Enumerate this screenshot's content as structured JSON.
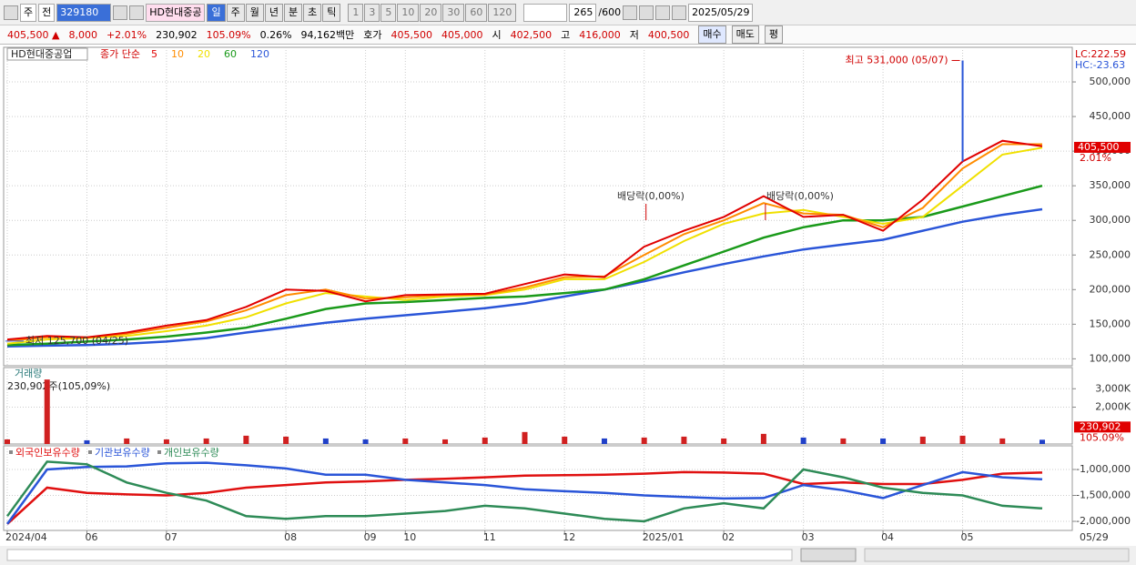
{
  "toolbar": {
    "market": "주",
    "kind": "전",
    "code": "329180",
    "name": "HD현대중공",
    "periods": [
      "일",
      "주",
      "월",
      "년",
      "분",
      "초",
      "틱"
    ],
    "intervals": [
      "1",
      "3",
      "5",
      "10",
      "20",
      "30",
      "60",
      "120"
    ],
    "count": "265",
    "max": "/600",
    "date": "2025/05/29"
  },
  "infobar": {
    "items": [
      {
        "text": "405,500 ▲",
        "color": "#d00000"
      },
      {
        "text": "8,000",
        "color": "#d00000"
      },
      {
        "text": "+2.01%",
        "color": "#d00000"
      },
      {
        "text": "230,902"
      },
      {
        "text": "105.09%",
        "color": "#d00000"
      },
      {
        "text": "0.26%"
      },
      {
        "text": "94,162백만"
      },
      {
        "text": "호가"
      },
      {
        "text": "405,500",
        "color": "#d00000"
      },
      {
        "text": "405,000",
        "color": "#d00000"
      },
      {
        "text": "시"
      },
      {
        "text": "402,500",
        "color": "#d00000"
      },
      {
        "text": "고"
      },
      {
        "text": "416,000",
        "color": "#d00000"
      },
      {
        "text": "저"
      },
      {
        "text": "400,500",
        "color": "#d00000"
      }
    ],
    "buttons": [
      "매수",
      "매도",
      "평"
    ]
  },
  "chart_data": [
    {
      "type": "line",
      "title": "HD현대중공업",
      "indicator": "종가 단순",
      "lc": "LC:222.59",
      "hc": "HC:-23.63",
      "ylim": [
        90000,
        550000
      ],
      "yticks": [
        {
          "value": 100000,
          "label": "100,000"
        },
        {
          "value": 150000,
          "label": "150,000"
        },
        {
          "value": 200000,
          "label": "200,000"
        },
        {
          "value": 250000,
          "label": "250,000"
        },
        {
          "value": 300000,
          "label": "300,000"
        },
        {
          "value": 350000,
          "label": "350,000"
        },
        {
          "value": 400000,
          "label": "400,000"
        },
        {
          "value": 450000,
          "label": "450,000"
        },
        {
          "value": 500000,
          "label": "500,000"
        }
      ],
      "series": [
        {
          "name": "5",
          "color": "#e00000",
          "values": [
            128000,
            133000,
            131000,
            138000,
            148000,
            156000,
            175000,
            200000,
            198000,
            183000,
            192000,
            193000,
            194000,
            208000,
            222000,
            218000,
            262000,
            285000,
            305000,
            335000,
            305000,
            308000,
            285000,
            330000,
            385000,
            415000,
            407000
          ]
        },
        {
          "name": "10",
          "color": "#ff8c00",
          "values": [
            126000,
            131000,
            131000,
            136000,
            145000,
            154000,
            170000,
            192000,
            200000,
            187000,
            189000,
            192000,
            193000,
            203000,
            218000,
            219000,
            250000,
            280000,
            300000,
            325000,
            310000,
            308000,
            290000,
            318000,
            375000,
            410000,
            410000
          ]
        },
        {
          "name": "20",
          "color": "#f0e000",
          "values": [
            122000,
            128000,
            130000,
            133000,
            140000,
            148000,
            160000,
            180000,
            195000,
            190000,
            185000,
            190000,
            192000,
            200000,
            215000,
            215000,
            240000,
            270000,
            295000,
            310000,
            315000,
            305000,
            295000,
            305000,
            350000,
            395000,
            405000
          ]
        },
        {
          "name": "60",
          "color": "#1a9a1a",
          "values": [
            120000,
            122000,
            125000,
            128000,
            132000,
            138000,
            145000,
            158000,
            172000,
            180000,
            182000,
            185000,
            188000,
            190000,
            195000,
            200000,
            215000,
            235000,
            255000,
            275000,
            290000,
            300000,
            300000,
            305000,
            320000,
            335000,
            350000
          ]
        },
        {
          "name": "120",
          "color": "#2a55d8",
          "values": [
            118000,
            119000,
            120000,
            122000,
            125000,
            130000,
            138000,
            145000,
            152000,
            158000,
            163000,
            168000,
            173000,
            180000,
            190000,
            200000,
            212000,
            225000,
            237000,
            248000,
            258000,
            265000,
            272000,
            285000,
            298000,
            308000,
            316000
          ]
        }
      ],
      "high": {
        "text": "최고 531,000 (05/07)",
        "value": 531000
      },
      "low": {
        "text": "최저 125,700 (04/25)",
        "value": 125700
      },
      "dividends": [
        "배당락(0,00%)",
        "배당락(0,00%)"
      ],
      "last": {
        "label": "405,500",
        "value": 405500
      },
      "change": "2.01%"
    },
    {
      "type": "bar",
      "title": "거래량",
      "annotation": "230,902주(105,09%)",
      "up_color": "#d02020",
      "down_color": "#2040c8",
      "ylim": [
        0,
        4150000
      ],
      "yticks": [
        {
          "value": 2000000,
          "label": "2,000K"
        },
        {
          "value": 3000000,
          "label": "3,000K"
        }
      ],
      "values": [
        250000,
        3500000,
        200000,
        300000,
        250000,
        300000,
        450000,
        400000,
        300000,
        250000,
        300000,
        250000,
        350000,
        650000,
        400000,
        300000,
        350000,
        400000,
        300000,
        550000,
        350000,
        300000,
        300000,
        400000,
        450000,
        300000,
        230902
      ],
      "last": {
        "label": "230,902",
        "value": 230902
      },
      "ratio": "105.09%"
    },
    {
      "type": "line",
      "ylim": [
        -2175000,
        -544000
      ],
      "yticks": [
        {
          "value": -2000000,
          "label": "-2,000,000"
        },
        {
          "value": -1500000,
          "label": "-1,500,000"
        },
        {
          "value": -1000000,
          "label": "-1,000,000"
        }
      ],
      "categories": [
        "2024/04",
        null,
        "06",
        null,
        "07",
        null,
        null,
        "08",
        null,
        "09",
        "10",
        null,
        "11",
        null,
        "12",
        null,
        "2025/01",
        null,
        "02",
        null,
        "03",
        null,
        "04",
        null,
        "05",
        null,
        null
      ],
      "end_label": "05/29",
      "series": [
        {
          "name": "외국인보유수량",
          "color": "#e01010",
          "values": [
            -2050000,
            -1350000,
            -1450000,
            -1480000,
            -1500000,
            -1450000,
            -1350000,
            -1300000,
            -1250000,
            -1230000,
            -1200000,
            -1180000,
            -1150000,
            -1120000,
            -1110000,
            -1100000,
            -1080000,
            -1050000,
            -1060000,
            -1080000,
            -1280000,
            -1250000,
            -1280000,
            -1280000,
            -1200000,
            -1080000,
            -1060000
          ]
        },
        {
          "name": "기관보유수량",
          "color": "#2a55d8",
          "values": [
            -2050000,
            -1000000,
            -950000,
            -940000,
            -880000,
            -870000,
            -920000,
            -980000,
            -1100000,
            -1100000,
            -1200000,
            -1250000,
            -1300000,
            -1380000,
            -1420000,
            -1450000,
            -1500000,
            -1530000,
            -1560000,
            -1550000,
            -1300000,
            -1400000,
            -1550000,
            -1300000,
            -1050000,
            -1150000,
            -1190000
          ]
        },
        {
          "name": "개인보유수량",
          "color": "#2e8b57",
          "values": [
            -1900000,
            -850000,
            -900000,
            -1250000,
            -1450000,
            -1600000,
            -1900000,
            -1950000,
            -1900000,
            -1900000,
            -1850000,
            -1800000,
            -1700000,
            -1750000,
            -1850000,
            -1950000,
            -2000000,
            -1750000,
            -1650000,
            -1750000,
            -1000000,
            -1150000,
            -1350000,
            -1450000,
            -1500000,
            -1700000,
            -1750000
          ]
        }
      ]
    }
  ]
}
